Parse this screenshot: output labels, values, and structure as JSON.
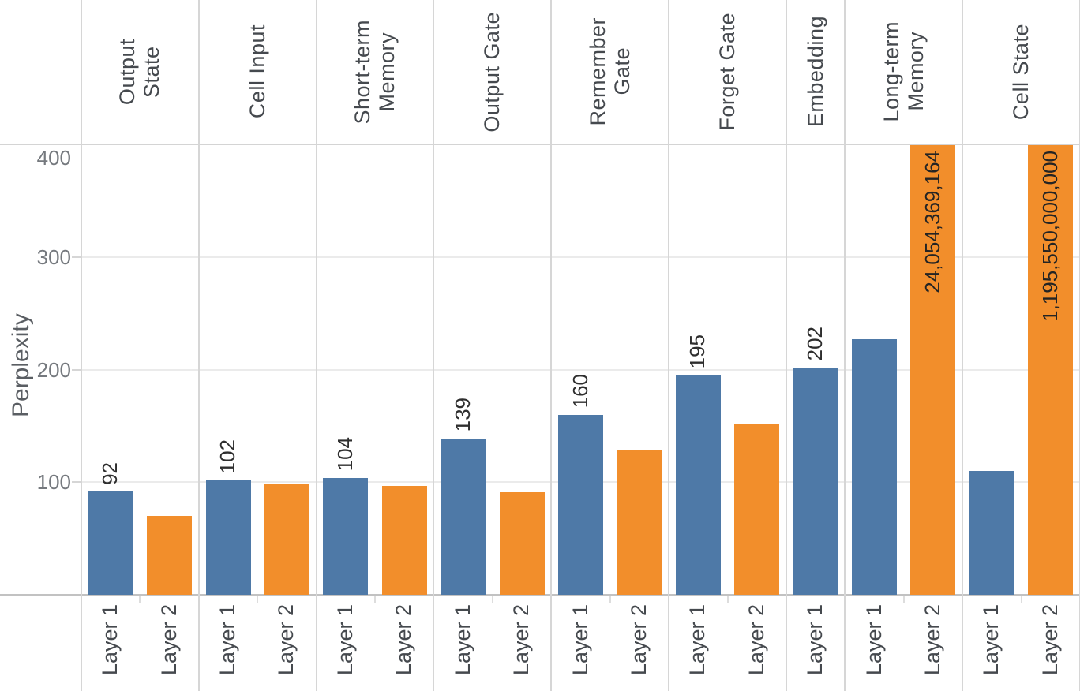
{
  "chart_data": {
    "type": "bar",
    "title": "",
    "xlabel": "",
    "ylabel": "Perplexity",
    "y_ticks": [
      100,
      200,
      300,
      400
    ],
    "y_axis_visible_range": [
      0,
      400
    ],
    "grid": true,
    "legend_position": "none",
    "series_colors": {
      "Layer 1": "#4e79a7",
      "Layer 2": "#f28e2b"
    },
    "note": "Bars taller than 400 are clipped at the top of the pane with their value printed inside the bar",
    "groups": [
      {
        "label_lines": [
          "Output",
          "State"
        ],
        "bars": [
          {
            "series": "Layer 1",
            "value": 92,
            "data_label": "92"
          },
          {
            "series": "Layer 2",
            "value": 70,
            "data_label": ""
          }
        ]
      },
      {
        "label_lines": [
          "Cell Input"
        ],
        "bars": [
          {
            "series": "Layer 1",
            "value": 102,
            "data_label": "102"
          },
          {
            "series": "Layer 2",
            "value": 99,
            "data_label": ""
          }
        ]
      },
      {
        "label_lines": [
          "Short-term",
          "Memory"
        ],
        "bars": [
          {
            "series": "Layer 1",
            "value": 104,
            "data_label": "104"
          },
          {
            "series": "Layer 2",
            "value": 97,
            "data_label": ""
          }
        ]
      },
      {
        "label_lines": [
          "Output Gate"
        ],
        "bars": [
          {
            "series": "Layer 1",
            "value": 139,
            "data_label": "139"
          },
          {
            "series": "Layer 2",
            "value": 91,
            "data_label": ""
          }
        ]
      },
      {
        "label_lines": [
          "Remember",
          "Gate"
        ],
        "bars": [
          {
            "series": "Layer 1",
            "value": 160,
            "data_label": "160"
          },
          {
            "series": "Layer 2",
            "value": 129,
            "data_label": ""
          }
        ]
      },
      {
        "label_lines": [
          "Forget Gate"
        ],
        "bars": [
          {
            "series": "Layer 1",
            "value": 195,
            "data_label": "195"
          },
          {
            "series": "Layer 2",
            "value": 152,
            "data_label": ""
          }
        ]
      },
      {
        "label_lines": [
          "Embedding"
        ],
        "bars": [
          {
            "series": "Layer 1",
            "value": 202,
            "data_label": "202"
          }
        ]
      },
      {
        "label_lines": [
          "Long-term",
          "Memory"
        ],
        "bars": [
          {
            "series": "Layer 1",
            "value": 227,
            "data_label": ""
          },
          {
            "series": "Layer 2",
            "value": 24054369164,
            "data_label": "24,054,369,164",
            "label_inside": true
          }
        ]
      },
      {
        "label_lines": [
          "Cell State"
        ],
        "bars": [
          {
            "series": "Layer 1",
            "value": 110,
            "data_label": ""
          },
          {
            "series": "Layer 2",
            "value": 1195550000000,
            "data_label": "1,195,550,000,000",
            "label_inside": true
          }
        ]
      }
    ]
  }
}
